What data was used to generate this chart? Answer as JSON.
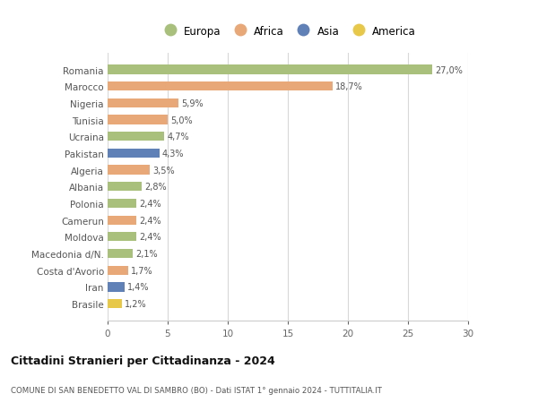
{
  "countries": [
    "Romania",
    "Marocco",
    "Nigeria",
    "Tunisia",
    "Ucraina",
    "Pakistan",
    "Algeria",
    "Albania",
    "Polonia",
    "Camerun",
    "Moldova",
    "Macedonia d/N.",
    "Costa d'Avorio",
    "Iran",
    "Brasile"
  ],
  "values": [
    27.0,
    18.7,
    5.9,
    5.0,
    4.7,
    4.3,
    3.5,
    2.8,
    2.4,
    2.4,
    2.4,
    2.1,
    1.7,
    1.4,
    1.2
  ],
  "labels": [
    "27,0%",
    "18,7%",
    "5,9%",
    "5,0%",
    "4,7%",
    "4,3%",
    "3,5%",
    "2,8%",
    "2,4%",
    "2,4%",
    "2,4%",
    "2,1%",
    "1,7%",
    "1,4%",
    "1,2%"
  ],
  "colors": [
    "#a8c07c",
    "#e8a878",
    "#e8a878",
    "#e8a878",
    "#a8c07c",
    "#6080b8",
    "#e8a878",
    "#a8c07c",
    "#a8c07c",
    "#e8a878",
    "#a8c07c",
    "#a8c07c",
    "#e8a878",
    "#6080b8",
    "#e8c848"
  ],
  "legend_labels": [
    "Europa",
    "Africa",
    "Asia",
    "America"
  ],
  "legend_colors": [
    "#a8c07c",
    "#e8a878",
    "#6080b8",
    "#e8c848"
  ],
  "title": "Cittadini Stranieri per Cittadinanza - 2024",
  "subtitle": "COMUNE DI SAN BENEDETTO VAL DI SAMBRO (BO) - Dati ISTAT 1° gennaio 2024 - TUTTITALIA.IT",
  "xlim": [
    0,
    30
  ],
  "xticks": [
    0,
    5,
    10,
    15,
    20,
    25,
    30
  ],
  "bg_color": "#ffffff",
  "grid_color": "#d8d8d8"
}
